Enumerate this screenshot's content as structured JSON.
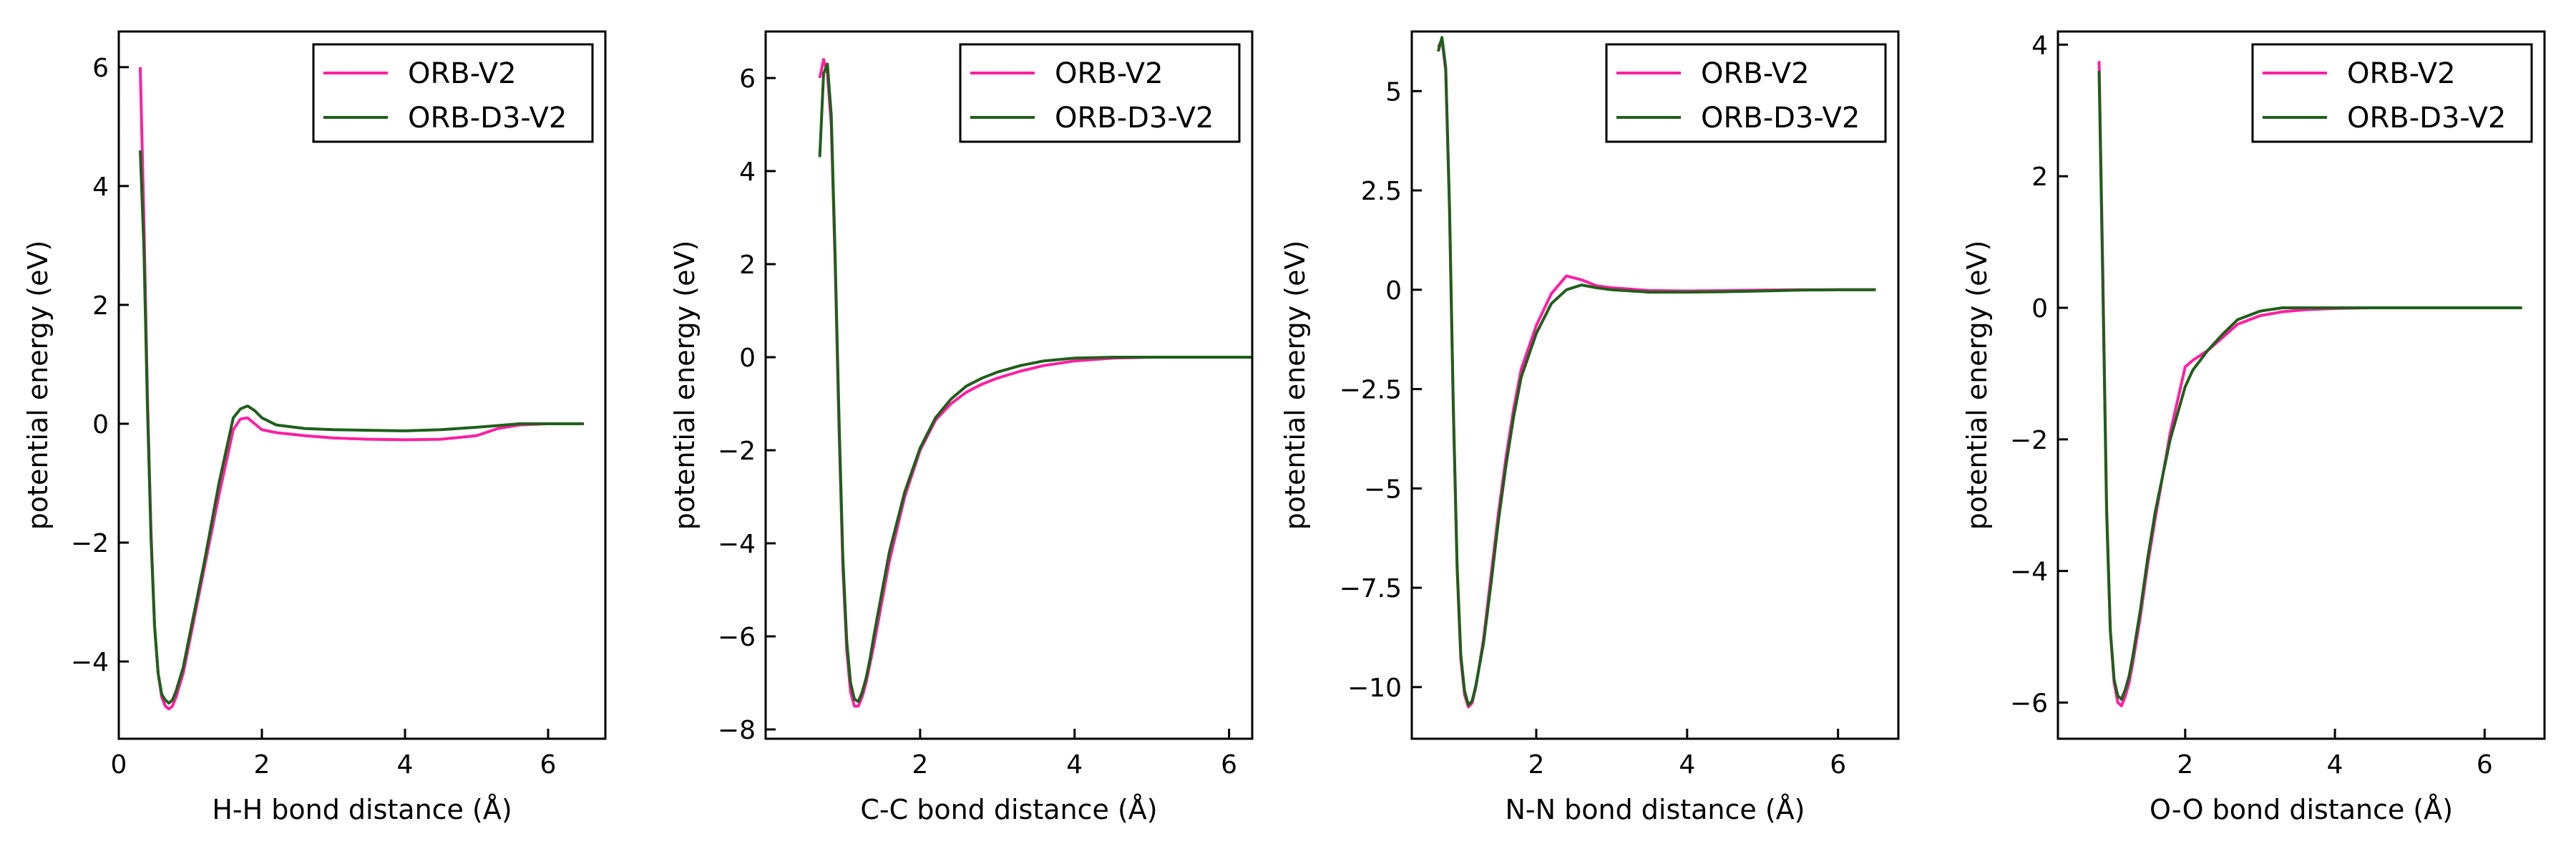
{
  "legend": {
    "placement": "top-right"
  },
  "chart_data": [
    {
      "type": "line",
      "xlabel": "H-H bond distance (Å)",
      "ylabel": "potential energy (eV)",
      "xlim": [
        0,
        6.8
      ],
      "ylim": [
        -5.3,
        6.6
      ],
      "xticks": [
        0,
        2,
        4,
        6
      ],
      "yticks": [
        -4,
        -2,
        0,
        2,
        4,
        6
      ],
      "grid": false,
      "series": [
        {
          "name": "ORB-V2",
          "color": "#ff1fa3",
          "x": [
            0.3,
            0.35,
            0.4,
            0.45,
            0.5,
            0.55,
            0.6,
            0.65,
            0.7,
            0.75,
            0.8,
            0.85,
            0.9,
            1.0,
            1.2,
            1.4,
            1.6,
            1.7,
            1.8,
            1.9,
            2.0,
            2.2,
            2.6,
            3.0,
            3.5,
            4.0,
            4.5,
            5.0,
            5.3,
            5.6,
            6.0,
            6.5
          ],
          "y": [
            6.0,
            3.5,
            0.5,
            -1.8,
            -3.4,
            -4.2,
            -4.6,
            -4.75,
            -4.8,
            -4.75,
            -4.6,
            -4.4,
            -4.2,
            -3.6,
            -2.4,
            -1.2,
            -0.1,
            0.08,
            0.1,
            0.0,
            -0.1,
            -0.15,
            -0.2,
            -0.24,
            -0.26,
            -0.27,
            -0.26,
            -0.2,
            -0.08,
            -0.02,
            0.0,
            0.0
          ]
        },
        {
          "name": "ORB-D3-V2",
          "color": "#1f5f1a",
          "x": [
            0.3,
            0.35,
            0.4,
            0.45,
            0.5,
            0.55,
            0.6,
            0.65,
            0.7,
            0.75,
            0.8,
            0.85,
            0.9,
            1.0,
            1.2,
            1.4,
            1.6,
            1.7,
            1.8,
            1.9,
            2.0,
            2.2,
            2.6,
            3.0,
            3.5,
            4.0,
            4.5,
            5.0,
            5.3,
            5.6,
            6.0,
            6.5
          ],
          "y": [
            4.6,
            3.0,
            0.3,
            -1.9,
            -3.4,
            -4.2,
            -4.55,
            -4.65,
            -4.7,
            -4.65,
            -4.5,
            -4.3,
            -4.1,
            -3.5,
            -2.3,
            -1.0,
            0.1,
            0.25,
            0.3,
            0.22,
            0.1,
            -0.02,
            -0.08,
            -0.1,
            -0.11,
            -0.12,
            -0.1,
            -0.06,
            -0.03,
            0.0,
            0.0,
            0.0
          ]
        }
      ]
    },
    {
      "type": "line",
      "xlabel": "C-C bond distance (Å)",
      "ylabel": "potential energy (eV)",
      "xlim": [
        0.0,
        6.3
      ],
      "ylim": [
        -8.2,
        7.0
      ],
      "xticks": [
        2,
        4,
        6
      ],
      "yticks": [
        -8,
        -6,
        -4,
        -2,
        0,
        2,
        4,
        6
      ],
      "grid": false,
      "series": [
        {
          "name": "ORB-V2",
          "color": "#ff1fa3",
          "x": [
            0.7,
            0.75,
            0.8,
            0.85,
            0.9,
            0.95,
            1.0,
            1.05,
            1.1,
            1.15,
            1.2,
            1.25,
            1.3,
            1.35,
            1.4,
            1.5,
            1.6,
            1.8,
            2.0,
            2.2,
            2.4,
            2.6,
            2.8,
            3.0,
            3.3,
            3.6,
            4.0,
            4.5,
            5.0,
            5.5,
            6.0,
            6.5
          ],
          "y": [
            6.0,
            6.4,
            6.1,
            5.0,
            2.0,
            -1.5,
            -4.5,
            -6.3,
            -7.2,
            -7.5,
            -7.5,
            -7.3,
            -7.0,
            -6.6,
            -6.2,
            -5.3,
            -4.4,
            -3.0,
            -2.0,
            -1.35,
            -1.0,
            -0.75,
            -0.58,
            -0.45,
            -0.3,
            -0.18,
            -0.08,
            -0.02,
            0.0,
            0.0,
            0.0,
            0.0
          ]
        },
        {
          "name": "ORB-D3-V2",
          "color": "#1f5f1a",
          "x": [
            0.7,
            0.75,
            0.8,
            0.85,
            0.9,
            0.95,
            1.0,
            1.05,
            1.1,
            1.15,
            1.2,
            1.25,
            1.3,
            1.35,
            1.4,
            1.5,
            1.6,
            1.8,
            2.0,
            2.2,
            2.4,
            2.6,
            2.8,
            3.0,
            3.3,
            3.6,
            4.0,
            4.5,
            5.0,
            5.5,
            6.0,
            6.5
          ],
          "y": [
            4.3,
            6.1,
            6.3,
            5.2,
            2.2,
            -1.3,
            -4.3,
            -6.1,
            -7.0,
            -7.35,
            -7.4,
            -7.2,
            -6.9,
            -6.5,
            -6.0,
            -5.1,
            -4.2,
            -2.9,
            -1.95,
            -1.3,
            -0.9,
            -0.62,
            -0.45,
            -0.32,
            -0.18,
            -0.08,
            -0.02,
            0.0,
            0.0,
            0.0,
            0.0,
            0.0
          ]
        }
      ]
    },
    {
      "type": "line",
      "xlabel": "N-N bond distance (Å)",
      "ylabel": "potential energy (eV)",
      "xlim": [
        0.35,
        6.8
      ],
      "ylim": [
        -11.3,
        6.5
      ],
      "xticks": [
        2,
        4,
        6
      ],
      "yticks": [
        -10.0,
        -7.5,
        -5.0,
        -2.5,
        0.0,
        2.5,
        5.0
      ],
      "grid": false,
      "series": [
        {
          "name": "ORB-V2",
          "color": "#ff1fa3",
          "x": [
            0.7,
            0.75,
            0.8,
            0.85,
            0.9,
            0.95,
            1.0,
            1.05,
            1.1,
            1.15,
            1.2,
            1.3,
            1.4,
            1.5,
            1.6,
            1.7,
            1.8,
            2.0,
            2.2,
            2.4,
            2.6,
            2.8,
            3.0,
            3.5,
            4.0,
            4.5,
            5.0,
            5.5,
            6.0,
            6.5
          ],
          "y": [
            6.1,
            6.3,
            5.5,
            2.0,
            -3.0,
            -7.0,
            -9.3,
            -10.2,
            -10.5,
            -10.4,
            -10.0,
            -8.8,
            -7.2,
            -5.6,
            -4.2,
            -3.0,
            -2.0,
            -0.9,
            -0.1,
            0.35,
            0.25,
            0.1,
            0.05,
            -0.02,
            -0.03,
            -0.02,
            -0.01,
            0.0,
            0.0,
            0.0
          ]
        },
        {
          "name": "ORB-D3-V2",
          "color": "#1f5f1a",
          "x": [
            0.7,
            0.75,
            0.8,
            0.85,
            0.9,
            0.95,
            1.0,
            1.05,
            1.1,
            1.15,
            1.2,
            1.3,
            1.4,
            1.5,
            1.6,
            1.7,
            1.8,
            2.0,
            2.2,
            2.4,
            2.6,
            2.8,
            3.0,
            3.5,
            4.0,
            4.5,
            5.0,
            5.5,
            6.0,
            6.5
          ],
          "y": [
            6.0,
            6.35,
            5.6,
            2.1,
            -2.9,
            -6.9,
            -9.2,
            -10.1,
            -10.45,
            -10.35,
            -9.95,
            -8.9,
            -7.4,
            -5.8,
            -4.4,
            -3.2,
            -2.2,
            -1.1,
            -0.35,
            0.0,
            0.12,
            0.05,
            0.0,
            -0.06,
            -0.06,
            -0.05,
            -0.03,
            -0.01,
            0.0,
            0.0
          ]
        }
      ]
    },
    {
      "type": "line",
      "xlabel": "O-O bond distance (Å)",
      "ylabel": "potential energy (eV)",
      "xlim": [
        0.3,
        6.8
      ],
      "ylim": [
        -6.55,
        4.2
      ],
      "xticks": [
        2,
        4,
        6
      ],
      "yticks": [
        -6,
        -4,
        -2,
        0,
        2,
        4
      ],
      "grid": false,
      "series": [
        {
          "name": "ORB-V2",
          "color": "#ff1fa3",
          "x": [
            0.85,
            0.9,
            0.95,
            1.0,
            1.05,
            1.1,
            1.15,
            1.2,
            1.25,
            1.3,
            1.4,
            1.5,
            1.6,
            1.8,
            2.0,
            2.1,
            2.3,
            2.5,
            2.7,
            3.0,
            3.3,
            3.6,
            4.0,
            4.5,
            5.0,
            5.5,
            6.0,
            6.5
          ],
          "y": [
            3.75,
            0.5,
            -3.0,
            -4.9,
            -5.7,
            -6.0,
            -6.05,
            -5.9,
            -5.7,
            -5.4,
            -4.7,
            -3.9,
            -3.2,
            -1.9,
            -0.9,
            -0.8,
            -0.65,
            -0.45,
            -0.25,
            -0.12,
            -0.06,
            -0.03,
            -0.01,
            0.0,
            0.0,
            0.0,
            0.0,
            0.0
          ]
        },
        {
          "name": "ORB-D3-V2",
          "color": "#1f5f1a",
          "x": [
            0.85,
            0.9,
            0.95,
            1.0,
            1.05,
            1.1,
            1.15,
            1.2,
            1.25,
            1.3,
            1.4,
            1.5,
            1.6,
            1.8,
            2.0,
            2.1,
            2.3,
            2.5,
            2.7,
            3.0,
            3.3,
            3.6,
            4.0,
            4.5,
            5.0,
            5.5,
            6.0,
            6.5
          ],
          "y": [
            3.6,
            0.3,
            -3.1,
            -4.9,
            -5.65,
            -5.9,
            -5.95,
            -5.8,
            -5.6,
            -5.3,
            -4.6,
            -3.8,
            -3.1,
            -2.0,
            -1.2,
            -0.95,
            -0.65,
            -0.4,
            -0.18,
            -0.05,
            0.0,
            0.0,
            0.0,
            0.0,
            0.0,
            0.0,
            0.0,
            0.0
          ]
        }
      ]
    }
  ]
}
